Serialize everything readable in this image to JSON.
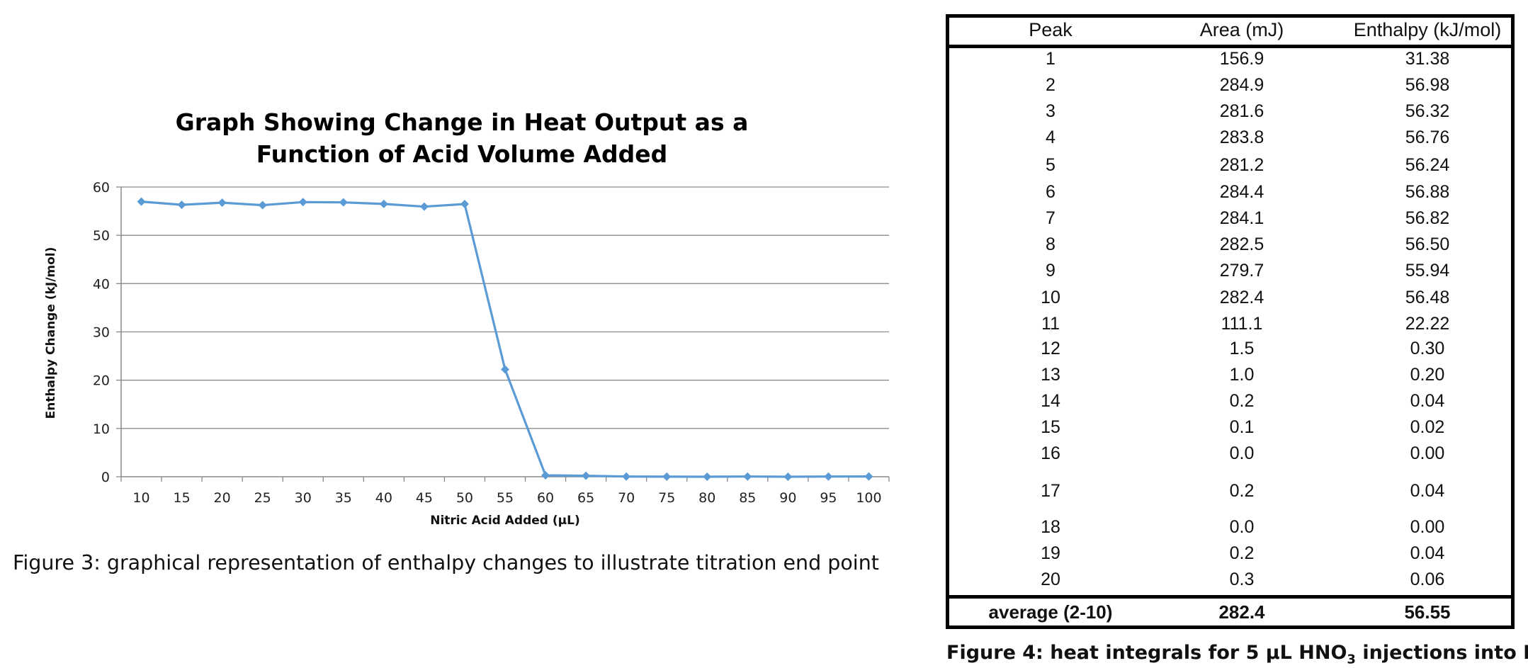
{
  "chart_data": {
    "type": "line",
    "title_lines": [
      "Graph Showing Change in Heat Output as a",
      "Function of Acid Volume Added"
    ],
    "xlabel": "Nitric Acid Added (µL)",
    "ylabel": "Enthalpy Change (kJ/mol)",
    "categories": [
      "10",
      "15",
      "20",
      "25",
      "30",
      "35",
      "40",
      "45",
      "50",
      "55",
      "60",
      "65",
      "70",
      "75",
      "80",
      "85",
      "90",
      "95",
      "100"
    ],
    "series": [
      {
        "values": [
          56.98,
          56.32,
          56.76,
          56.24,
          56.88,
          56.82,
          56.5,
          55.94,
          56.48,
          22.22,
          0.3,
          0.2,
          0.04,
          0.02,
          0.0,
          0.04,
          0.0,
          0.04,
          0.06
        ]
      }
    ],
    "ylim": [
      0,
      60
    ],
    "yticks": [
      "0",
      "10",
      "20",
      "30",
      "40",
      "50",
      "60"
    ],
    "grid": true,
    "line_color": "#5b9bd5"
  },
  "captions": {
    "figure3": "Figure 3: graphical representation of enthalpy changes to illustrate titration end point",
    "figure4_prefix": "Figure 4: heat integrals for 5 µL HNO",
    "figure4_sub": "3",
    "figure4_suffix": " injections into NaOH"
  },
  "table": {
    "headers": [
      "Peak",
      "Area (mJ)",
      "Enthalpy (kJ/mol)"
    ],
    "rows": [
      [
        "1",
        "156.9",
        "31.38"
      ],
      [
        "2",
        "284.9",
        "56.98"
      ],
      [
        "3",
        "281.6",
        "56.32"
      ],
      [
        "4",
        "283.8",
        "56.76"
      ],
      [
        "5",
        "281.2",
        "56.24"
      ],
      [
        "6",
        "284.4",
        "56.88"
      ],
      [
        "7",
        "284.1",
        "56.82"
      ],
      [
        "8",
        "282.5",
        "56.50"
      ],
      [
        "9",
        "279.7",
        "55.94"
      ],
      [
        "10",
        "282.4",
        "56.48"
      ],
      [
        "11",
        "111.1",
        "22.22"
      ],
      [
        "12",
        "1.5",
        "0.30"
      ],
      [
        "13",
        "1.0",
        "0.20"
      ],
      [
        "14",
        "0.2",
        "0.04"
      ],
      [
        "15",
        "0.1",
        "0.02"
      ],
      [
        "16",
        "0.0",
        "0.00"
      ],
      [
        "17",
        "0.2",
        "0.04"
      ],
      [
        "18",
        "0.0",
        "0.00"
      ],
      [
        "19",
        "0.2",
        "0.04"
      ],
      [
        "20",
        "0.3",
        "0.06"
      ]
    ],
    "average": [
      "average (2-10)",
      "282.4",
      "56.55"
    ]
  }
}
